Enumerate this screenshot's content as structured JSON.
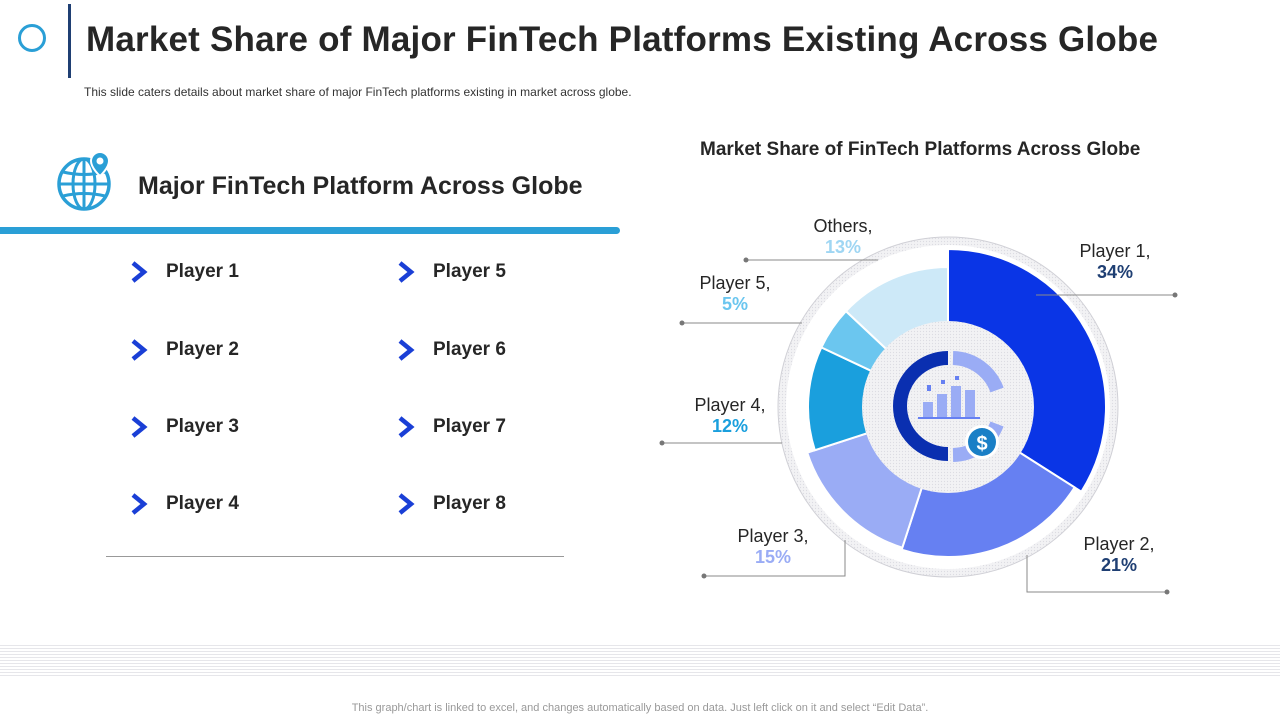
{
  "header": {
    "title": "Market Share of Major FinTech Platforms Existing Across Globe",
    "subtitle": "This slide caters details about market share of major FinTech platforms existing in market across globe."
  },
  "left_panel": {
    "heading": "Major FinTech Platform Across Globe",
    "players": [
      "Player 1",
      "Player 2",
      "Player 3",
      "Player 4",
      "Player 5",
      "Player 6",
      "Player 7",
      "Player 8"
    ]
  },
  "colors": {
    "accent": "#2a9fd6",
    "title_bar": "#1f3f73",
    "chevron": "#1a3fd6"
  },
  "footer": {
    "note": "This graph/chart is linked to excel,  and changes automatically based on data. Just left click on it and select “Edit Data”."
  },
  "chart_data": {
    "type": "pie",
    "title": "Market Share of FinTech Platforms Across Globe",
    "categories": [
      "Player 1",
      "Player 2",
      "Player 3",
      "Player 4",
      "Player 5",
      "Others"
    ],
    "values": [
      34,
      21,
      15,
      12,
      5,
      13
    ],
    "label_names": [
      "Player 1,",
      "Player 2,",
      "Player 3,",
      "Player 4,",
      "Player 5,",
      "Others,"
    ],
    "value_labels": [
      "34%",
      "21%",
      "15%",
      "12%",
      "5%",
      "13%"
    ],
    "colors": [
      "#0a35e6",
      "#6680f2",
      "#9aacf5",
      "#1a9fdd",
      "#6bc6ef",
      "#cde9f8"
    ],
    "value_label_colors": [
      "#1f3f73",
      "#1f3f73",
      "#9aacf5",
      "#1a9fdd",
      "#6bc6ef",
      "#9fd6f3"
    ],
    "center_icon": "bar-chart-dollar-icon"
  }
}
